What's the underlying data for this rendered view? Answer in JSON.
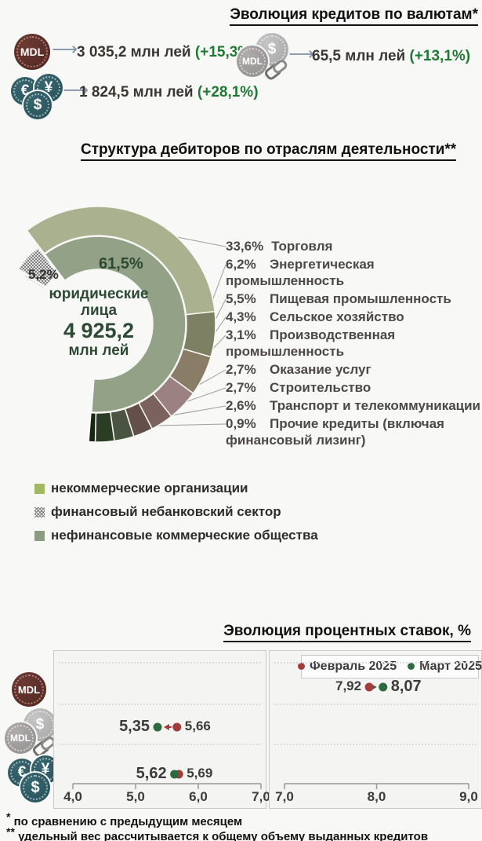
{
  "currencies_section": {
    "title": "Эволюция кредитов по валютам*",
    "coins": {
      "mdl": "MDL",
      "usd": "$",
      "eur": "€",
      "yen": "¥"
    },
    "items": [
      {
        "icon": "mdl-coin",
        "value": "3 035,2 млн лей",
        "change": "(+15,3%)"
      },
      {
        "icon": "mdl-usd-linked-coins",
        "value": "65,5 млн лей",
        "change": "(+13,1%)"
      },
      {
        "icon": "foreign-currency-coins",
        "value": "1 824,5 млн лей",
        "change": "(+28,1%)"
      }
    ],
    "arrow_glyph": "⟶"
  },
  "debtors_section": {
    "title": "Структура дебиторов по отраслям деятельности**",
    "center": {
      "line1": "юридические",
      "line2": "лица",
      "value": "4 925,2",
      "unit": "млн лей"
    }
  },
  "rates_section": {
    "title": "Эволюция процентных ставок, %"
  },
  "footnotes": [
    {
      "marker": "*",
      "text": "по сравнению с предыдущим месяцем"
    },
    {
      "marker": "**",
      "text": "удельный вес рассчитывается к общему объему выданных кредитов"
    }
  ],
  "chart_data": [
    {
      "type": "pie",
      "subtype": "two-ring donut, partial (share of total issued credits)",
      "title": "Структура дебиторов по отраслям деятельности**",
      "center_label": {
        "text": "юридические лица",
        "value": "4 925,2",
        "unit": "млн лей"
      },
      "start_angle": 303,
      "inner_ring": [
        {
          "name": "некоммерческие организации",
          "value": 0.3,
          "color": "#a2b964",
          "label": ""
        },
        {
          "name": "финансовый небанковский сектор",
          "value": 5.2,
          "color": "hatch",
          "label": "5,2%"
        },
        {
          "name": "нефинансовые коммерческие общества",
          "value": 61.5,
          "color": "#93a287",
          "label": "61,5%"
        }
      ],
      "outer_ring": [
        {
          "name": "Торговля",
          "pct": "33,6%",
          "value": 33.6,
          "color": "#a9b18f"
        },
        {
          "name": "Энергетическая промышленность",
          "pct": "6,2%",
          "value": 6.2,
          "color": "#7d8062"
        },
        {
          "name": "Пищевая промышленность",
          "pct": "5,5%",
          "value": 5.5,
          "color": "#8a7d68"
        },
        {
          "name": "Сельское хозяйство",
          "pct": "4,3%",
          "value": 4.3,
          "color": "#9c8183"
        },
        {
          "name": "Производственная промышленность",
          "pct": "3,1%",
          "value": 3.1,
          "color": "#7b625c"
        },
        {
          "name": "Оказание услуг",
          "pct": "2,7%",
          "value": 2.7,
          "color": "#64504a"
        },
        {
          "name": "Строительство",
          "pct": "2,7%",
          "value": 2.7,
          "color": "#4b5341"
        },
        {
          "name": "Транспорт и телекоммуникации",
          "pct": "2,6%",
          "value": 2.6,
          "color": "#2b3d23"
        },
        {
          "name": "Прочие кредиты (включая финансовый лизинг)",
          "pct": "0,9%",
          "value": 0.9,
          "color": "#17260f"
        }
      ],
      "legend": [
        {
          "label": "некоммерческие организации",
          "color": "#a2b964"
        },
        {
          "label": "финансовый небанковский сектор",
          "color": "hatch"
        },
        {
          "label": "нефинансовые коммерческие общества",
          "color": "#8b9d81"
        }
      ]
    },
    {
      "type": "scatter",
      "subtype": "dot plot with change arrows",
      "title": "Эволюция процентных ставок, %",
      "legend": [
        {
          "label": "Февраль 2025",
          "color": "#a23c3c"
        },
        {
          "label": "Март 2025",
          "color": "#2c6b3d"
        }
      ],
      "panels": [
        {
          "xlim": [
            4.0,
            7.0
          ],
          "ticks": [
            "4,0",
            "5,0",
            "6,0",
            "7,0"
          ],
          "rows": [
            {
              "currency": "mdl-linked",
              "feb": 5.66,
              "mar": 5.35,
              "feb_label": "5,66",
              "mar_label": "5,35"
            },
            {
              "currency": "foreign-currency",
              "feb": 5.69,
              "mar": 5.62,
              "feb_label": "5,69",
              "mar_label": "5,62"
            }
          ]
        },
        {
          "xlim": [
            7.0,
            9.0
          ],
          "ticks": [
            "7,0",
            "8,0",
            "9,0"
          ],
          "rows": [
            {
              "currency": "mdl",
              "feb": 7.92,
              "mar": 8.07,
              "feb_label": "7,92",
              "mar_label": "8,07"
            }
          ]
        }
      ]
    }
  ]
}
